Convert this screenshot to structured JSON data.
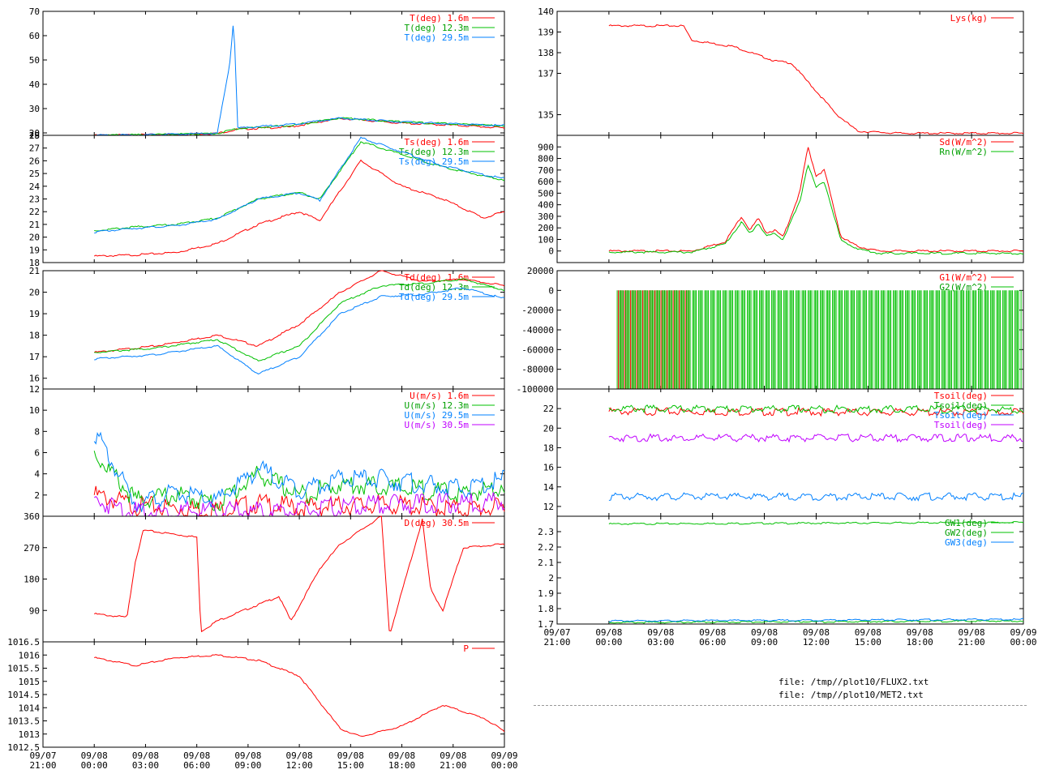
{
  "x_axis": {
    "ticks": [
      {
        "date": "09/07",
        "time": "21:00"
      },
      {
        "date": "09/08",
        "time": "00:00"
      },
      {
        "date": "09/08",
        "time": "03:00"
      },
      {
        "date": "09/08",
        "time": "06:00"
      },
      {
        "date": "09/08",
        "time": "09:00"
      },
      {
        "date": "09/08",
        "time": "12:00"
      },
      {
        "date": "09/08",
        "time": "15:00"
      },
      {
        "date": "09/08",
        "time": "18:00"
      },
      {
        "date": "09/08",
        "time": "21:00"
      },
      {
        "date": "09/09",
        "time": "00:00"
      }
    ],
    "range": [
      "09/07 21:00",
      "09/09 00:00"
    ]
  },
  "colors": {
    "red": "#ff0000",
    "green": "#00c000",
    "blue": "#0080ff",
    "purple": "#c000ff",
    "dark_red": "#c00000"
  },
  "files": [
    "file: /tmp//plot10/FLUX2.txt",
    "file: /tmp//plot10/MET2.txt"
  ],
  "chart_data": [
    {
      "id": "air_temp",
      "type": "line",
      "ylim": [
        19,
        70
      ],
      "yticks": [
        "70",
        "60",
        "50",
        "40",
        "30",
        "20",
        "19"
      ],
      "series": [
        {
          "name": "T(deg)  1.6m",
          "color": "#ff0000",
          "x": [
            0,
            0.12,
            0.3,
            0.35,
            0.48,
            0.6,
            0.75,
            0.9,
            1
          ],
          "values": [
            19,
            19.2,
            19.8,
            21.5,
            22.5,
            26,
            24,
            23,
            22
          ]
        },
        {
          "name": "T(deg) 12.3m",
          "color": "#00c000",
          "x": [
            0,
            0.12,
            0.3,
            0.35,
            0.48,
            0.6,
            0.75,
            0.9,
            1
          ],
          "values": [
            19,
            19.2,
            19.8,
            21.8,
            23,
            26.2,
            24.5,
            23.5,
            23
          ]
        },
        {
          "name": "T(deg) 29.5m",
          "color": "#0080ff",
          "x": [
            0,
            0.12,
            0.3,
            0.33,
            0.34,
            0.35,
            0.48,
            0.6,
            0.75,
            0.9,
            1
          ],
          "values": [
            19,
            19.2,
            19.8,
            48,
            67,
            22,
            23.5,
            26,
            24.5,
            23.5,
            23
          ]
        }
      ]
    },
    {
      "id": "surface_temp",
      "type": "line",
      "ylim": [
        18,
        28
      ],
      "yticks": [
        "28",
        "27",
        "26",
        "25",
        "24",
        "23",
        "22",
        "21",
        "20",
        "19",
        "18"
      ],
      "series": [
        {
          "name": "Ts(deg)  1.6m",
          "color": "#ff0000",
          "x": [
            0,
            0.1,
            0.2,
            0.3,
            0.4,
            0.5,
            0.55,
            0.65,
            0.75,
            0.85,
            0.95,
            1
          ],
          "values": [
            18.5,
            18.6,
            18.8,
            19.5,
            21,
            22,
            21.3,
            26,
            24,
            23,
            21.5,
            22
          ]
        },
        {
          "name": "Ts(deg) 12.3m",
          "color": "#00c000",
          "x": [
            0,
            0.1,
            0.2,
            0.3,
            0.4,
            0.5,
            0.55,
            0.65,
            0.75,
            0.85,
            0.95,
            1
          ],
          "values": [
            20.5,
            20.8,
            21,
            21.5,
            23,
            23.5,
            23,
            27.5,
            26.5,
            25.5,
            24.8,
            24.5
          ]
        },
        {
          "name": "Ts(deg) 29.5m",
          "color": "#0080ff",
          "x": [
            0,
            0.1,
            0.2,
            0.3,
            0.4,
            0.5,
            0.55,
            0.65,
            0.75,
            0.85,
            0.95,
            1
          ],
          "values": [
            20.4,
            20.7,
            20.9,
            21.4,
            23,
            23.5,
            22.9,
            27.8,
            26.7,
            25.6,
            24.9,
            24.6
          ]
        }
      ]
    },
    {
      "id": "dew_temp",
      "type": "line",
      "ylim": [
        15.5,
        21
      ],
      "yticks": [
        "21",
        "20",
        "19",
        "18",
        "17",
        "16"
      ],
      "series": [
        {
          "name": "Td(deg)  1.6m",
          "color": "#ff0000",
          "x": [
            0,
            0.15,
            0.3,
            0.4,
            0.5,
            0.6,
            0.7,
            0.8,
            0.9,
            1
          ],
          "values": [
            17.2,
            17.5,
            18,
            17.5,
            18.5,
            20,
            21,
            20.5,
            20.6,
            20.3
          ]
        },
        {
          "name": "Td(deg) 12.3m",
          "color": "#00c000",
          "x": [
            0,
            0.15,
            0.3,
            0.4,
            0.5,
            0.6,
            0.7,
            0.8,
            0.9,
            1
          ],
          "values": [
            17.2,
            17.4,
            17.8,
            16.8,
            17.5,
            19.5,
            20.3,
            20.4,
            20.6,
            20.1
          ]
        },
        {
          "name": "Td(deg) 29.5m",
          "color": "#0080ff",
          "x": [
            0,
            0.15,
            0.3,
            0.4,
            0.5,
            0.6,
            0.7,
            0.8,
            0.9,
            1
          ],
          "values": [
            16.9,
            17.1,
            17.5,
            16.2,
            17,
            19,
            19.8,
            19.9,
            20.2,
            19.7
          ]
        }
      ]
    },
    {
      "id": "wind_speed",
      "type": "line",
      "ylim": [
        0,
        12
      ],
      "yticks": [
        "12",
        "10",
        "8",
        "6",
        "4",
        "2"
      ],
      "series": [
        {
          "name": "U(m/s)  1.6m",
          "color": "#ff0000",
          "x": [
            0,
            0.1,
            0.2,
            0.3,
            0.4,
            0.5,
            0.6,
            0.7,
            0.8,
            0.9,
            1
          ],
          "values": [
            2,
            1,
            0.8,
            0.6,
            1.2,
            0.8,
            1,
            1.1,
            0.9,
            0.7,
            0.8
          ]
        },
        {
          "name": "U(m/s) 12.3m",
          "color": "#00c000",
          "x": [
            0,
            0.1,
            0.2,
            0.3,
            0.4,
            0.5,
            0.6,
            0.7,
            0.8,
            0.9,
            1
          ],
          "values": [
            6,
            1.5,
            2,
            1.2,
            4,
            2,
            3,
            2.8,
            2.5,
            2,
            3
          ]
        },
        {
          "name": "U(m/s) 29.5m",
          "color": "#0080ff",
          "x": [
            0,
            0.1,
            0.2,
            0.3,
            0.4,
            0.5,
            0.6,
            0.7,
            0.8,
            0.9,
            1
          ],
          "values": [
            8,
            1.2,
            2.2,
            1.4,
            4.5,
            2.5,
            3.5,
            3.5,
            3,
            2.5,
            3.5
          ]
        },
        {
          "name": "U(m/s) 30.5m",
          "color": "#c000ff",
          "x": [
            0,
            0.1,
            0.2,
            0.3,
            0.4,
            0.5,
            0.6,
            0.7,
            0.8,
            0.9,
            1
          ],
          "values": [
            1.5,
            0.4,
            0.4,
            0.5,
            0.5,
            0.5,
            0.8,
            1.2,
            1.2,
            1.2,
            1.5
          ]
        }
      ]
    },
    {
      "id": "wind_dir",
      "type": "line",
      "ylim": [
        0,
        360
      ],
      "yticks": [
        "360",
        "270",
        "180",
        "90"
      ],
      "series": [
        {
          "name": "D(deg) 30.5m",
          "color": "#ff0000",
          "x": [
            0,
            0.08,
            0.1,
            0.12,
            0.25,
            0.26,
            0.3,
            0.45,
            0.48,
            0.55,
            0.6,
            0.7,
            0.72,
            0.8,
            0.82,
            0.85,
            0.9,
            1
          ],
          "values": [
            80,
            70,
            230,
            320,
            300,
            30,
            60,
            130,
            60,
            210,
            280,
            360,
            20,
            350,
            150,
            90,
            270,
            280
          ]
        }
      ]
    },
    {
      "id": "pressure",
      "type": "line",
      "ylim": [
        1012.5,
        1016.5
      ],
      "yticks": [
        "1016.5",
        "1016",
        "1015.5",
        "1015",
        "1014.5",
        "1014",
        "1013.5",
        "1013",
        "1012.5"
      ],
      "series": [
        {
          "name": "P",
          "color": "#ff0000",
          "x": [
            0,
            0.1,
            0.2,
            0.3,
            0.4,
            0.5,
            0.6,
            0.65,
            0.75,
            0.85,
            0.95,
            1
          ],
          "values": [
            1015.9,
            1015.6,
            1015.9,
            1016,
            1015.8,
            1015.2,
            1013.2,
            1012.9,
            1013.3,
            1014.1,
            1013.6,
            1013.1
          ]
        }
      ]
    },
    {
      "id": "lysimeter",
      "type": "line",
      "ylim": [
        134,
        140
      ],
      "yticks": [
        "140",
        "139",
        "138",
        "137",
        "135"
      ],
      "series": [
        {
          "name": "Lys(kg)",
          "color": "#ff0000",
          "x": [
            0,
            0.18,
            0.2,
            0.3,
            0.4,
            0.44,
            0.55,
            0.6,
            0.7,
            1
          ],
          "values": [
            139.3,
            139.3,
            138.6,
            138.3,
            137.6,
            137.5,
            135,
            134.2,
            134.1,
            134.1
          ]
        }
      ]
    },
    {
      "id": "radiation",
      "type": "line",
      "ylim": [
        -100,
        1000
      ],
      "yticks": [
        "900",
        "800",
        "700",
        "600",
        "500",
        "400",
        "300",
        "200",
        "100",
        "0"
      ],
      "series": [
        {
          "name": "Sd(W/m^2)",
          "color": "#ff0000",
          "x": [
            0,
            0.2,
            0.28,
            0.32,
            0.34,
            0.36,
            0.38,
            0.4,
            0.42,
            0.46,
            0.48,
            0.5,
            0.52,
            0.56,
            0.6,
            0.65,
            1
          ],
          "values": [
            0,
            0,
            80,
            300,
            180,
            280,
            160,
            180,
            120,
            500,
            900,
            650,
            700,
            120,
            40,
            0,
            0
          ]
        },
        {
          "name": "Rn(W/m^2)",
          "color": "#00c000",
          "x": [
            0,
            0.2,
            0.28,
            0.32,
            0.34,
            0.36,
            0.38,
            0.4,
            0.42,
            0.46,
            0.48,
            0.5,
            0.52,
            0.56,
            0.6,
            0.65,
            1
          ],
          "values": [
            -10,
            -10,
            60,
            250,
            150,
            240,
            130,
            150,
            100,
            420,
            750,
            550,
            600,
            90,
            20,
            -20,
            -20
          ]
        }
      ]
    },
    {
      "id": "ground_flux",
      "type": "bar",
      "ylim": [
        -100000,
        20000
      ],
      "yticks": [
        "20000",
        "0",
        "-20000",
        "-40000",
        "-60000",
        "-80000",
        "-100000"
      ],
      "series": [
        {
          "name": "G1(W/m^2)",
          "color": "#ff0000",
          "x": [
            0.02,
            0.2
          ],
          "values": [
            -100000,
            -100000
          ]
        },
        {
          "name": "G2(W/m^2)",
          "color": "#00c000",
          "x": [
            0.02,
            1
          ],
          "values": [
            -100000,
            -100000
          ]
        }
      ]
    },
    {
      "id": "soil_temp",
      "type": "line",
      "ylim": [
        11,
        24
      ],
      "yticks": [
        "22",
        "20",
        "18",
        "16",
        "14",
        "12"
      ],
      "series": [
        {
          "name": "Tsoil(deg)",
          "color": "#ff0000",
          "x": [
            0,
            1
          ],
          "values": [
            21.7,
            21.6
          ]
        },
        {
          "name": "Tsoil(deg)",
          "color": "#00c000",
          "x": [
            0,
            1
          ],
          "values": [
            22,
            21.9
          ]
        },
        {
          "name": "Tsoil(deg)",
          "color": "#0080ff",
          "x": [
            0,
            1
          ],
          "values": [
            13,
            13
          ]
        },
        {
          "name": "Tsoil(deg)",
          "color": "#c000ff",
          "x": [
            0,
            1
          ],
          "values": [
            19,
            19
          ]
        }
      ]
    },
    {
      "id": "ground_water",
      "type": "line",
      "ylim": [
        1.7,
        2.4
      ],
      "yticks": [
        "2.3",
        "2.2",
        "2.1",
        "2",
        "1.9",
        "1.8",
        "1.7"
      ],
      "series": [
        {
          "name": "GW1(deg)",
          "color": "#00c000",
          "x": [
            0,
            1
          ],
          "values": [
            2.35,
            2.36
          ]
        },
        {
          "name": "GW2(deg)",
          "color": "#00c000",
          "x": [
            0,
            1
          ],
          "values": [
            1.71,
            1.72
          ]
        },
        {
          "name": "GW3(deg)",
          "color": "#0080ff",
          "x": [
            0,
            1
          ],
          "values": [
            1.72,
            1.73
          ]
        }
      ]
    }
  ]
}
